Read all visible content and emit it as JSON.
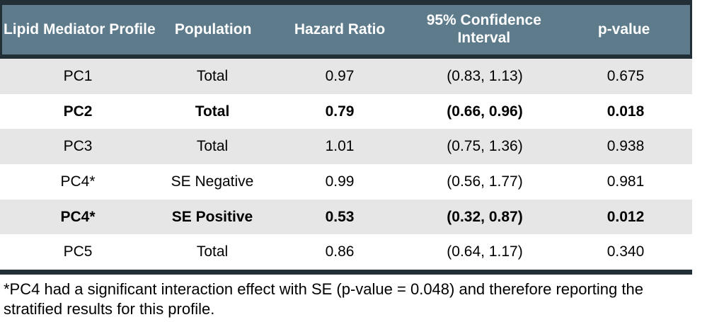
{
  "table": {
    "columns": [
      "Lipid Mediator Profile",
      "Population",
      "Hazard Ratio",
      "95% Confidence Interval",
      "p-value"
    ],
    "rows": [
      {
        "cells": [
          "PC1",
          "Total",
          "0.97",
          "(0.83, 1.13)",
          "0.675"
        ],
        "bold": false
      },
      {
        "cells": [
          "PC2",
          "Total",
          "0.79",
          "(0.66, 0.96)",
          "0.018"
        ],
        "bold": true
      },
      {
        "cells": [
          "PC3",
          "Total",
          "1.01",
          "(0.75, 1.36)",
          "0.938"
        ],
        "bold": false
      },
      {
        "cells": [
          "PC4*",
          "SE Negative",
          "0.99",
          "(0.56, 1.77)",
          "0.981"
        ],
        "bold": false
      },
      {
        "cells": [
          "PC4*",
          "SE Positive",
          "0.53",
          "(0.32, 0.87)",
          "0.012"
        ],
        "bold": true
      },
      {
        "cells": [
          "PC5",
          "Total",
          "0.86",
          "(0.64, 1.17)",
          "0.340"
        ],
        "bold": false
      }
    ]
  },
  "footnote": "*PC4 had a significant interaction effect with SE (p-value = 0.048) and therefore reporting the stratified results for this profile.",
  "colors": {
    "header_bg": "#5d7b8b",
    "border_dark": "#232f36",
    "row_shaded": "#e7e6e6",
    "row_plain": "#ffffff",
    "header_text": "#ffffff",
    "body_text": "#000000"
  }
}
